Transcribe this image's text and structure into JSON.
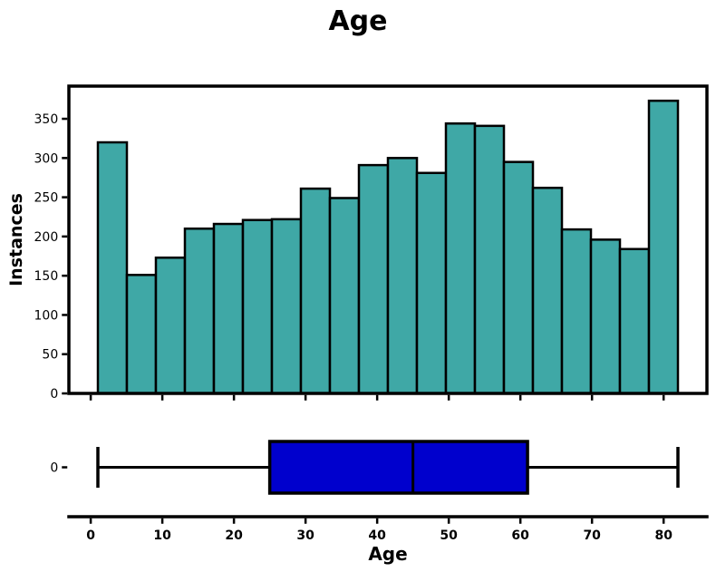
{
  "figure": {
    "title": "Age",
    "xlabel": "Age",
    "ylabel": "Instances"
  },
  "colors": {
    "background": "#ffffff",
    "bar_fill": "#3fa8a6",
    "bar_edge": "#000000",
    "box_fill": "#0000cd",
    "line": "#000000",
    "text": "#000000"
  },
  "chart_data": [
    {
      "type": "bar",
      "subtype": "histogram",
      "title": "Age",
      "xlabel": "",
      "ylabel": "Instances",
      "bins": 20,
      "bin_start": 1,
      "bin_end": 82,
      "values": [
        320,
        151,
        173,
        210,
        216,
        221,
        222,
        261,
        249,
        291,
        300,
        281,
        344,
        341,
        295,
        262,
        209,
        196,
        184,
        373
      ],
      "yticks": [
        0,
        50,
        100,
        150,
        200,
        250,
        300,
        350
      ],
      "xticks": [
        0,
        10,
        20,
        30,
        40,
        50,
        60,
        70,
        80
      ],
      "xticks_labeled": false,
      "xlim": [
        -3.05,
        86.05
      ],
      "ylim": [
        0,
        391.65
      ],
      "grid": false,
      "legend": "none",
      "frame": true
    },
    {
      "type": "box",
      "orientation": "horizontal",
      "whisker_min": 1,
      "q1": 25,
      "median": 45,
      "q3": 61,
      "whisker_max": 82,
      "position_tick_label": "0",
      "xlabel": "Age",
      "xticks": [
        0,
        10,
        20,
        30,
        40,
        50,
        60,
        70,
        80
      ],
      "xticks_labeled": true,
      "xlim": [
        -3.05,
        86.05
      ],
      "grid": false,
      "frame": false
    }
  ]
}
